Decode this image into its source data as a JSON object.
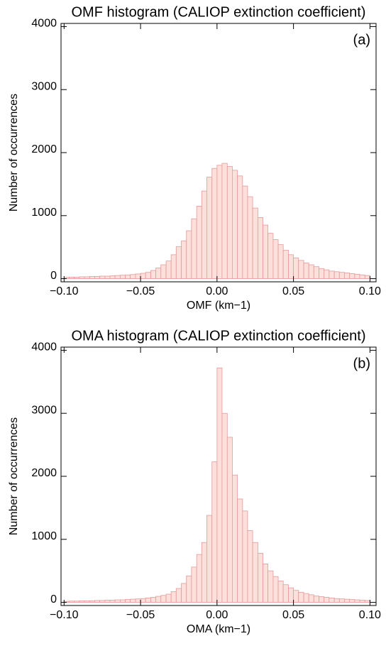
{
  "chart_data": [
    {
      "type": "histogram",
      "title": "OMF histogram (CALIOP extinction coefficient)",
      "xlabel": "OMF (km−1)",
      "ylabel": "Number of occurrences",
      "annotation": "(a)",
      "bins": [
        -0.1,
        -0.0967,
        -0.0933,
        -0.09,
        -0.0867,
        -0.0833,
        -0.08,
        -0.0767,
        -0.0733,
        -0.07,
        -0.0667,
        -0.0633,
        -0.06,
        -0.0567,
        -0.0533,
        -0.05,
        -0.0467,
        -0.0433,
        -0.04,
        -0.0367,
        -0.0333,
        -0.03,
        -0.0267,
        -0.0233,
        -0.02,
        -0.0167,
        -0.0133,
        -0.01,
        -0.0067,
        -0.0033,
        0,
        0.0033,
        0.0067,
        0.01,
        0.0133,
        0.0167,
        0.02,
        0.0233,
        0.0267,
        0.03,
        0.0333,
        0.0367,
        0.04,
        0.0433,
        0.0467,
        0.05,
        0.0533,
        0.0567,
        0.06,
        0.0633,
        0.0667,
        0.07,
        0.0733,
        0.0767,
        0.08,
        0.0833,
        0.0867,
        0.09,
        0.0933,
        0.0967,
        0.1
      ],
      "values": [
        20,
        25,
        25,
        30,
        30,
        35,
        35,
        40,
        40,
        45,
        50,
        55,
        60,
        65,
        75,
        85,
        100,
        130,
        170,
        220,
        280,
        380,
        510,
        600,
        760,
        950,
        1150,
        1390,
        1610,
        1750,
        1800,
        1830,
        1780,
        1720,
        1630,
        1470,
        1300,
        1120,
        970,
        850,
        720,
        620,
        540,
        450,
        380,
        330,
        290,
        250,
        220,
        190,
        160,
        140,
        120,
        110,
        100,
        90,
        80,
        70,
        60,
        50
      ],
      "color": "#fde0dc",
      "edgecolor": "#e39a9a",
      "xlim": [
        -0.102,
        0.104
      ],
      "ylim": [
        -50,
        4050
      ],
      "xticks": [
        {
          "value": -0.1,
          "label": "−0.10"
        },
        {
          "value": -0.05,
          "label": "−0.05"
        },
        {
          "value": 0,
          "label": "0.00"
        },
        {
          "value": 0.05,
          "label": "0.05"
        },
        {
          "value": 0.1,
          "label": "0.10"
        }
      ],
      "yticks": [
        0,
        1000,
        2000,
        3000,
        4000
      ]
    },
    {
      "type": "histogram",
      "title": "OMA histogram (CALIOP extinction coefficient)",
      "xlabel": "OMA (km−1)",
      "ylabel": "Number of occurrences",
      "annotation": "(b)",
      "bins": [
        -0.1,
        -0.0967,
        -0.0933,
        -0.09,
        -0.0867,
        -0.0833,
        -0.08,
        -0.0767,
        -0.0733,
        -0.07,
        -0.0667,
        -0.0633,
        -0.06,
        -0.0567,
        -0.0533,
        -0.05,
        -0.0467,
        -0.0433,
        -0.04,
        -0.0367,
        -0.0333,
        -0.03,
        -0.0267,
        -0.0233,
        -0.02,
        -0.0167,
        -0.0133,
        -0.01,
        -0.0067,
        -0.0033,
        0,
        0.0033,
        0.0067,
        0.01,
        0.0133,
        0.0167,
        0.02,
        0.0233,
        0.0267,
        0.03,
        0.0333,
        0.0367,
        0.04,
        0.0433,
        0.0467,
        0.05,
        0.0533,
        0.0567,
        0.06,
        0.0633,
        0.0667,
        0.07,
        0.0733,
        0.0767,
        0.08,
        0.0833,
        0.0867,
        0.09,
        0.0933,
        0.0967,
        0.1
      ],
      "values": [
        15,
        20,
        20,
        25,
        25,
        25,
        30,
        30,
        35,
        35,
        40,
        40,
        45,
        50,
        55,
        60,
        70,
        80,
        95,
        110,
        130,
        170,
        220,
        300,
        420,
        560,
        760,
        950,
        1380,
        2230,
        3720,
        3000,
        2620,
        2020,
        1640,
        1450,
        1140,
        950,
        780,
        610,
        500,
        410,
        340,
        280,
        230,
        190,
        160,
        140,
        120,
        100,
        90,
        80,
        70,
        60,
        55,
        50,
        45,
        40,
        35,
        30
      ],
      "color": "#fde0dc",
      "edgecolor": "#e39a9a",
      "xlim": [
        -0.102,
        0.104
      ],
      "ylim": [
        -50,
        4050
      ],
      "xticks": [
        {
          "value": -0.1,
          "label": "−0.10"
        },
        {
          "value": -0.05,
          "label": "−0.05"
        },
        {
          "value": 0,
          "label": "0.00"
        },
        {
          "value": 0.05,
          "label": "0.05"
        },
        {
          "value": 0.1,
          "label": "0.10"
        }
      ],
      "yticks": [
        0,
        1000,
        2000,
        3000,
        4000
      ]
    }
  ]
}
